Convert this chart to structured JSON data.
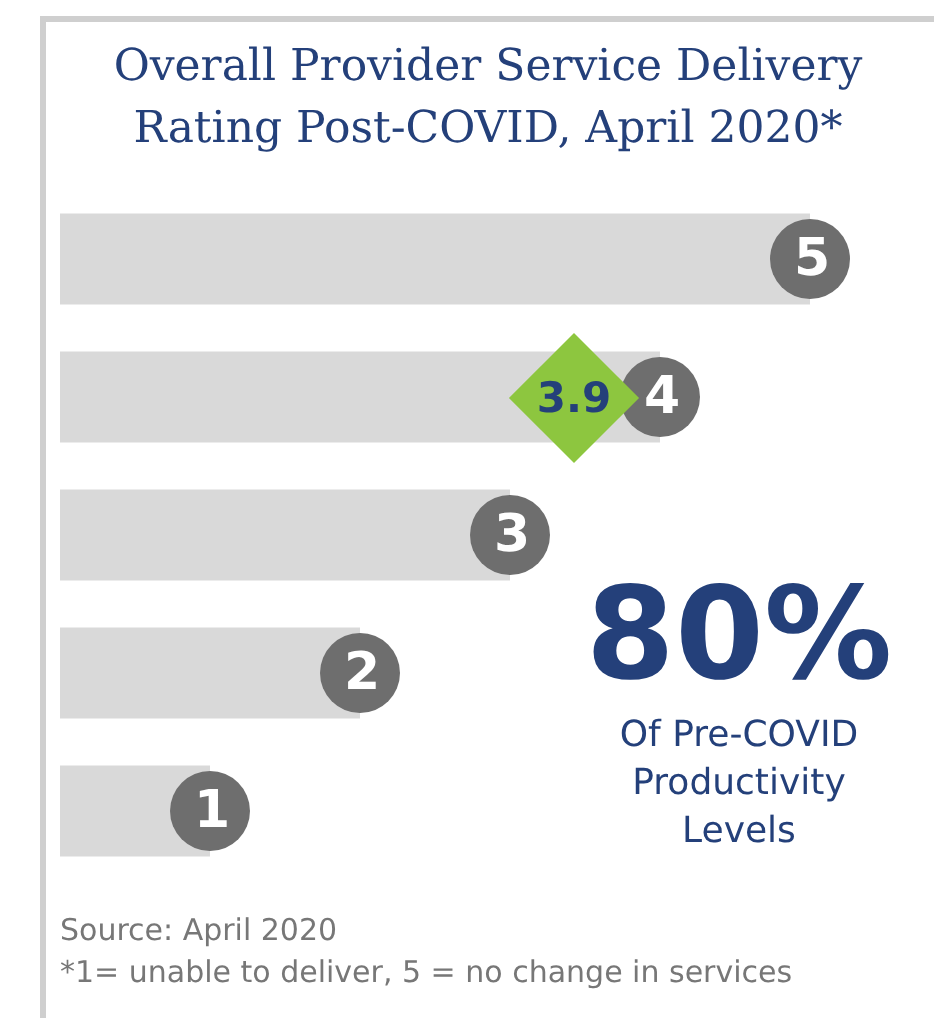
{
  "chart_data": {
    "type": "bar",
    "orientation": "horizontal",
    "title": "Overall Provider Service Delivery Rating Post-COVID, April 2020*",
    "categories": [
      null,
      null,
      null,
      null,
      null
    ],
    "values": [
      5,
      4,
      3,
      2,
      1
    ],
    "color": "#d9d9d9",
    "data_labels": true,
    "annotations": [
      "3.9",
      "80%",
      "Of Pre-COVID Productivity Levels",
      "Source: April 2020",
      "*1= unable to deliver, 5 = no change in services"
    ]
  }
}
